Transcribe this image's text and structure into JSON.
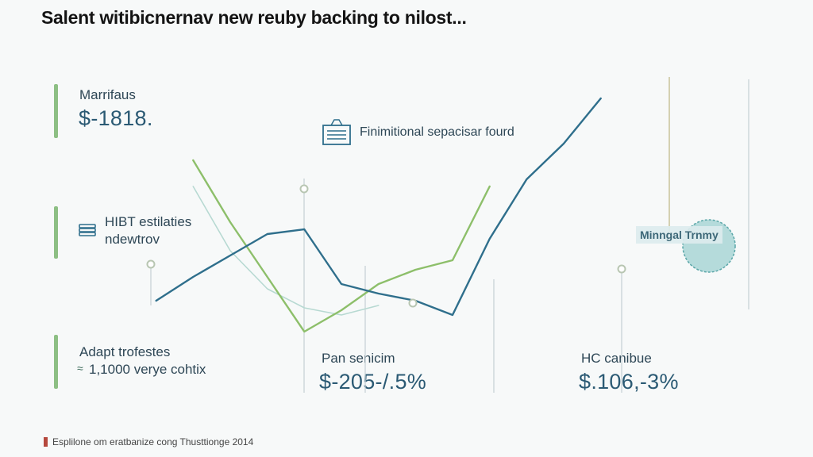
{
  "title": "Salent witibicnernav new reuby backing to nilost...",
  "kpis": [
    {
      "label": "Marrifaus",
      "value": "$-1818."
    },
    {
      "label": "HIBT estilaties",
      "sublabel": "ndewtrov"
    },
    {
      "label": "Adapt trofestes",
      "sublabel": "1,1000 verye cohtix"
    }
  ],
  "bottom_stats": [
    {
      "label": "Pan senicim",
      "value": "$-205-/.5%"
    },
    {
      "label": "HC canibue",
      "value": "$.106,-3%"
    }
  ],
  "annotation": "Finimitional sepacisar fourd",
  "callout": "Minngal Trnmy",
  "footer": "Esplilone om eratbanize cong Thusttionge 2014",
  "colors": {
    "blue": "#2f6f8c",
    "green": "#8dbf6a",
    "mint": "#b7d9d2",
    "accent_bar": "#8dbf84"
  },
  "chart_data": {
    "type": "line",
    "title": "Salent witibicnernav new reuby backing to nilost...",
    "x": [
      1,
      2,
      3,
      4,
      5,
      6,
      7,
      8,
      9,
      10,
      11,
      12,
      13,
      14,
      15,
      16,
      17,
      18,
      19
    ],
    "ylim": [
      0,
      100
    ],
    "series": [
      {
        "name": "blue",
        "values": [
          null,
          7,
          17,
          26,
          35,
          37,
          14,
          10,
          7,
          1,
          33,
          58,
          73,
          92,
          null,
          null,
          null,
          null,
          null
        ]
      },
      {
        "name": "green",
        "values": [
          null,
          null,
          66,
          40,
          17,
          -6,
          3,
          14,
          20,
          24,
          55,
          null,
          null,
          null,
          null,
          null,
          null,
          null,
          null
        ]
      },
      {
        "name": "mint",
        "values": [
          null,
          null,
          55,
          28,
          12,
          4,
          1,
          5,
          null,
          null,
          null,
          null,
          null,
          null,
          null,
          null,
          null,
          null,
          null
        ]
      }
    ]
  }
}
